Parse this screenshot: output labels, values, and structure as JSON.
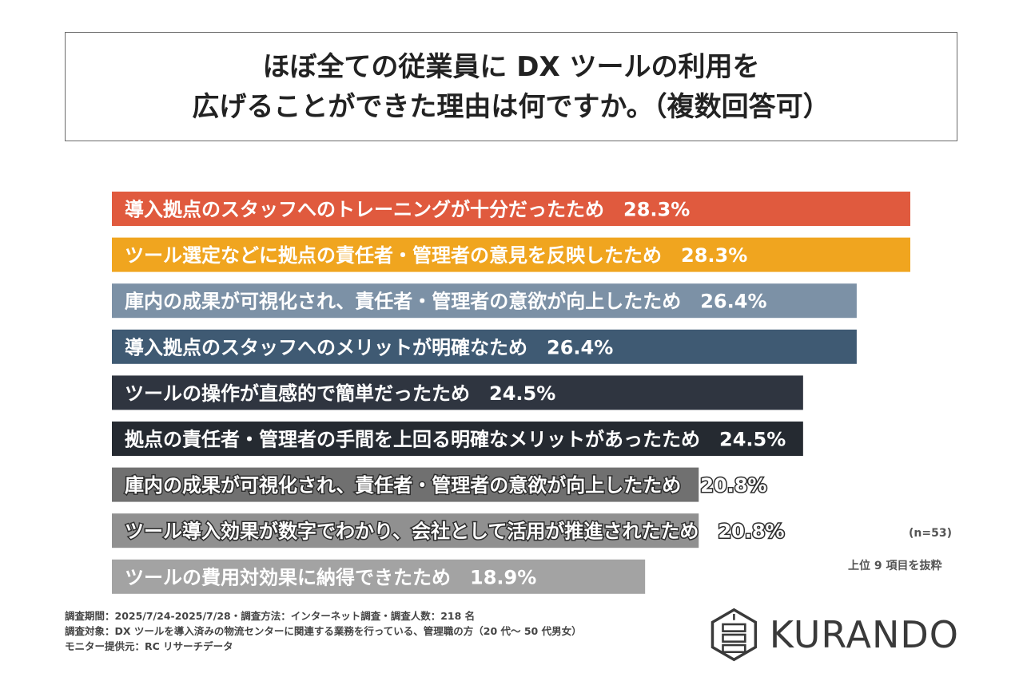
{
  "title": {
    "line1": "ほぼ全ての従業員に DX ツールの利用を",
    "line2": "広げることができた理由は何ですか。（複数回答可）"
  },
  "chart_data": {
    "type": "bar",
    "orientation": "horizontal",
    "unit": "%",
    "categories": [
      "導入拠点のスタッフへのトレーニングが十分だったため",
      "ツール選定などに拠点の責任者・管理者の意見を反映したため",
      "庫内の成果が可視化され、責任者・管理者の意欲が向上したため",
      "導入拠点のスタッフへのメリットが明確なため",
      "ツールの操作が直感的で簡単だったため",
      "拠点の責任者・管理者の手間を上回る明確なメリットがあったため",
      "庫内の成果が可視化され、責任者・管理者の意欲が向上したため",
      "ツール導入効果が数字でわかり、会社として活用が推進されたため",
      "ツールの費用対効果に納得できたため"
    ],
    "values": [
      28.3,
      28.3,
      26.4,
      26.4,
      24.5,
      24.5,
      20.8,
      20.8,
      18.9
    ],
    "value_labels": [
      "28.3%",
      "28.3%",
      "26.4%",
      "26.4%",
      "24.5%",
      "24.5%",
      "20.8%",
      "20.8%",
      "18.9%"
    ],
    "colors": [
      "#e05a3e",
      "#f0a51f",
      "#7c91a6",
      "#3f5a73",
      "#2f3540",
      "#252a31",
      "#707070",
      "#909090",
      "#a3a3a3"
    ],
    "grid": false,
    "legend": "none"
  },
  "notes": {
    "sample": "(n=53)",
    "top_items": "上位 9 項目を抜粋"
  },
  "footer": {
    "line1": "調査期間：2025/7/24-2025/7/28・調査方法：インターネット調査・調査人数：218 名",
    "line2": "調査対象：DX ツールを導入済みの物流センターに関連する業務を行っている、管理職の方（20 代～ 50 代男女）",
    "line3": "モニター提供元：RC リサーチデータ"
  },
  "logo": {
    "text": "KURANDO",
    "icon": "kurando-hexagon-logo-icon"
  }
}
